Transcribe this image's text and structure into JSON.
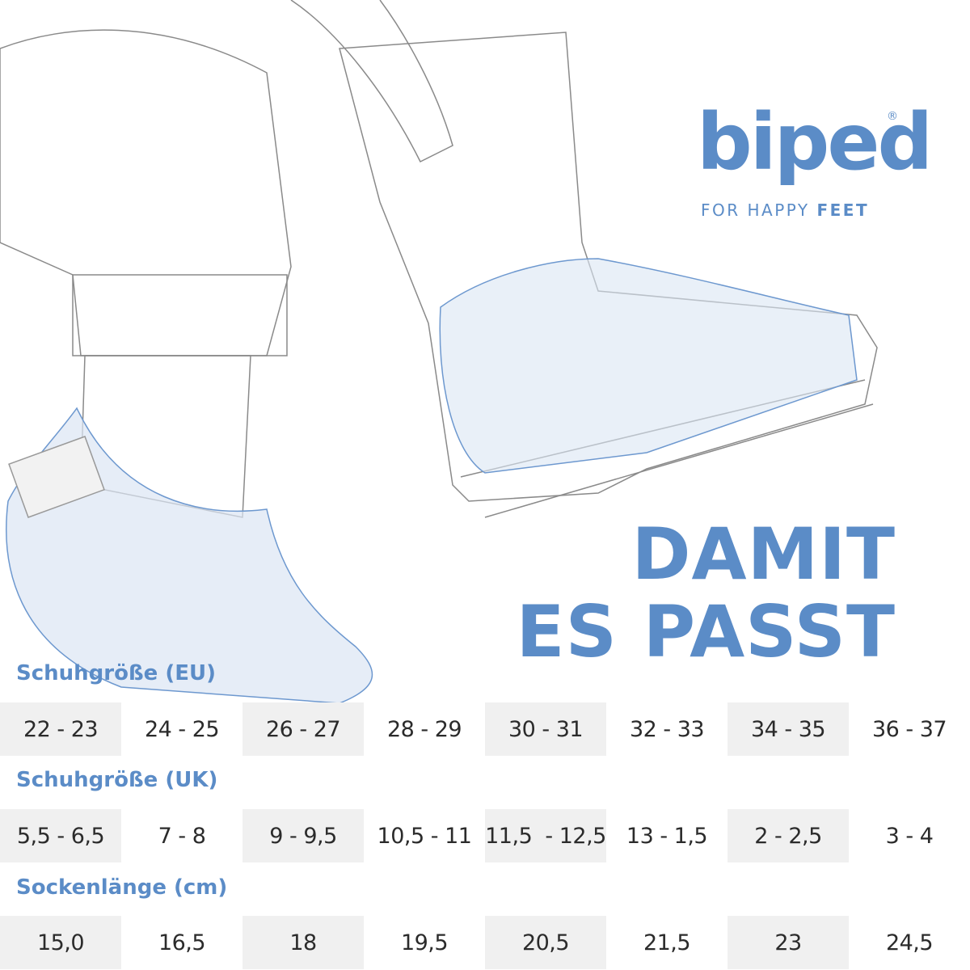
{
  "logo": {
    "brand": "biped",
    "registered": "®",
    "tagline_regular": "FOR HAPPY",
    "tagline_bold": "FEET"
  },
  "headline": [
    "DAMIT",
    "ES PASST"
  ],
  "sections": [
    {
      "label": "Schuhgröße (EU)",
      "cells": [
        "22 - 23",
        "24 - 25",
        "26 - 27",
        "28 - 29",
        "30 - 31",
        "32 - 33",
        "34 - 35",
        "36 - 37"
      ]
    },
    {
      "label": "Schuhgröße (UK)",
      "cells": [
        "5,5 - 6,5",
        "7 - 8",
        "9 - 9,5",
        "10,5 - 11",
        "11,5  - 12,5",
        "13 - 1,5",
        "2 - 2,5",
        "3 - 4"
      ]
    },
    {
      "label": "Sockenlänge (cm)",
      "cells": [
        "15,0",
        "16,5",
        "18",
        "19,5",
        "20,5",
        "21,5",
        "23",
        "24,5"
      ]
    }
  ]
}
